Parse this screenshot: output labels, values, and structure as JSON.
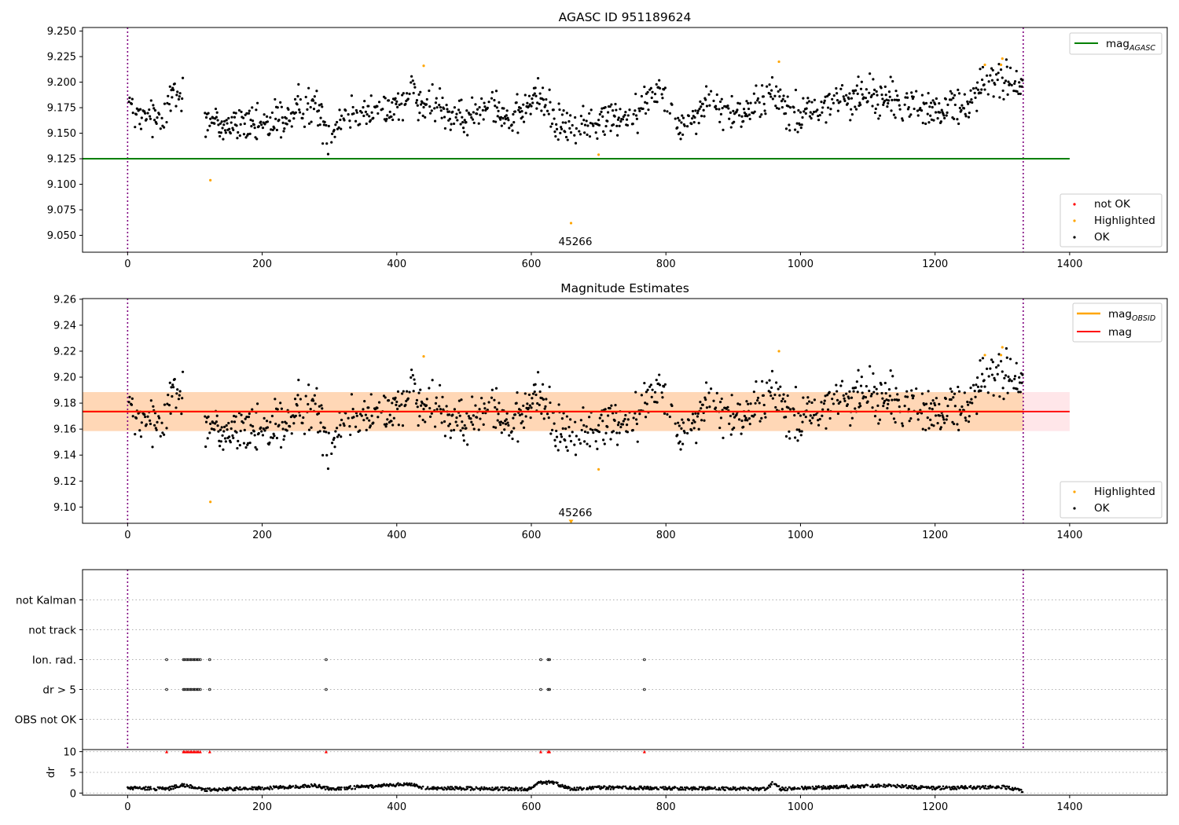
{
  "figure": {
    "title_top": "AGASC ID 951189624",
    "title_mid": "Magnitude Estimates"
  },
  "colors": {
    "ok": "#000000",
    "highlighted": "#ffa500",
    "not_ok": "#ff0000",
    "mag_agasc_line": "#008000",
    "mag_line": "#ff0000",
    "mag_obsid_line": "#ffa500",
    "band_fill": "#ffb6c1",
    "band_fill_obsid": "#ffa500",
    "obsid_boundary": "#800080"
  },
  "legends": {
    "top_line": {
      "label_main": "mag",
      "label_sub": "AGASC"
    },
    "top_points": [
      "not OK",
      "Highlighted",
      "OK"
    ],
    "mid_lines": [
      {
        "label_main": "mag",
        "label_sub": "OBSID",
        "color": "#ffa500"
      },
      {
        "label_main": "mag",
        "label_sub": "",
        "color": "#ff0000"
      }
    ],
    "mid_points": [
      "Highlighted",
      "OK"
    ]
  },
  "chart_data": [
    {
      "type": "scatter",
      "title": "AGASC ID 951189624",
      "xlabel": "",
      "ylabel": "",
      "xlim": [
        -67,
        1545
      ],
      "ylim": [
        9.0335,
        9.2535
      ],
      "xticks": [
        "0",
        "200",
        "400",
        "600",
        "800",
        "1000",
        "1200",
        "1400"
      ],
      "yticks": [
        "9.050",
        "9.075",
        "9.100",
        "9.125",
        "9.150",
        "9.175",
        "9.200",
        "9.225",
        "9.250"
      ],
      "hlines": [
        {
          "name": "mag_AGASC",
          "y": 9.125,
          "x_range": [
            -67,
            1400
          ]
        }
      ],
      "vlines": [
        0,
        1331
      ],
      "annotations": [
        {
          "text": "45266",
          "x": 664,
          "y": 9.05
        }
      ],
      "highlighted": {
        "x": [
          123,
          440,
          659,
          700,
          968,
          1274,
          1298,
          1300
        ],
        "y": [
          9.104,
          9.216,
          9.062,
          9.129,
          9.22,
          9.217,
          9.217,
          9.223
        ]
      },
      "ok_trend": {
        "x": [
          0,
          20,
          50,
          65,
          90,
          125,
          160,
          200,
          240,
          280,
          300,
          310,
          340,
          380,
          410,
          420,
          440,
          470,
          500,
          540,
          570,
          610,
          640,
          660,
          700,
          750,
          790,
          810,
          820,
          860,
          900,
          960,
          1000,
          1050,
          1100,
          1150,
          1200,
          1250,
          1270,
          1300,
          1330
        ],
        "y": [
          9.18,
          9.16,
          9.168,
          9.185,
          9.185,
          9.16,
          9.158,
          9.156,
          9.168,
          9.178,
          9.145,
          9.162,
          9.172,
          9.172,
          9.18,
          9.198,
          9.175,
          9.172,
          9.16,
          9.186,
          9.16,
          9.188,
          9.162,
          9.152,
          9.162,
          9.168,
          9.195,
          9.18,
          9.152,
          9.18,
          9.168,
          9.188,
          9.165,
          9.182,
          9.188,
          9.18,
          9.17,
          9.18,
          9.198,
          9.202,
          9.19
        ]
      },
      "legend_loc": [
        "upper right",
        "lower right"
      ]
    },
    {
      "type": "scatter",
      "title": "Magnitude Estimates",
      "xlabel": "",
      "ylabel": "",
      "xlim": [
        -67,
        1545
      ],
      "ylim": [
        9.0875,
        9.2605
      ],
      "xticks": [
        "0",
        "200",
        "400",
        "600",
        "800",
        "1000",
        "1200",
        "1400"
      ],
      "yticks": [
        "9.10",
        "9.12",
        "9.14",
        "9.16",
        "9.18",
        "9.20",
        "9.22",
        "9.24",
        "9.26"
      ],
      "hlines": [
        {
          "name": "mag",
          "y": 9.1735,
          "x_range": [
            -67,
            1400
          ]
        },
        {
          "name": "mag_OBSID",
          "y": 9.1735,
          "x_range": [
            -67,
            1331
          ]
        }
      ],
      "bands": [
        {
          "name": "mag band",
          "y_range": [
            9.1585,
            9.1885
          ],
          "x_range": [
            -67,
            1400
          ]
        },
        {
          "name": "mag_OBSID band",
          "y_range": [
            9.1585,
            9.1885
          ],
          "x_range": [
            -67,
            1331
          ]
        }
      ],
      "vlines": [
        0,
        1331
      ],
      "annotations": [
        {
          "text": "45266",
          "x": 664,
          "y": 9.095
        }
      ],
      "marker_at_bottom": {
        "x": 659,
        "y": 9.089
      },
      "highlighted": {
        "x": [
          123,
          440,
          700,
          968,
          1274,
          1298,
          1300
        ],
        "y": [
          9.104,
          9.216,
          9.129,
          9.22,
          9.217,
          9.217,
          9.223
        ]
      },
      "legend_loc": [
        "upper right",
        "lower right"
      ]
    },
    {
      "type": "scatter",
      "title": "",
      "xlabel": "",
      "ylabel": "",
      "xlim": [
        -67,
        1545
      ],
      "categories": [
        "not Kalman",
        "not track",
        "Ion. rad.",
        "dr > 5",
        "OBS not OK"
      ],
      "flags": {
        "Ion. rad.": [
          58,
          83,
          85,
          88,
          90,
          93,
          95,
          98,
          100,
          103,
          105,
          108,
          122,
          295,
          614,
          625,
          627,
          768
        ],
        "dr > 5": [
          58,
          83,
          85,
          88,
          90,
          93,
          95,
          98,
          100,
          103,
          105,
          108,
          122,
          295,
          614,
          625,
          627,
          768
        ]
      },
      "vlines": [
        0,
        1331
      ]
    },
    {
      "type": "scatter",
      "title": "",
      "xlabel": "",
      "ylabel": "dr",
      "xlim": [
        -67,
        1545
      ],
      "ylim": [
        -0.5,
        10.5
      ],
      "yticks": [
        "0",
        "5",
        "10"
      ],
      "clipped_at_10": [
        58,
        83,
        85,
        88,
        90,
        93,
        95,
        98,
        100,
        103,
        105,
        108,
        122,
        295,
        614,
        625,
        627,
        768
      ],
      "dr_trend": {
        "x": [
          0,
          60,
          80,
          100,
          110,
          200,
          280,
          300,
          420,
          440,
          600,
          610,
          630,
          660,
          700,
          800,
          950,
          960,
          970,
          1120,
          1200,
          1300,
          1331
        ],
        "y": [
          1.2,
          1.0,
          2.0,
          1.5,
          0.8,
          1.2,
          1.8,
          1.0,
          2.2,
          1.2,
          1.0,
          2.5,
          2.6,
          1.0,
          1.3,
          1.2,
          1.0,
          2.6,
          1.0,
          1.8,
          1.2,
          1.5,
          0.5
        ]
      },
      "vlines": [
        0,
        1331
      ]
    }
  ]
}
